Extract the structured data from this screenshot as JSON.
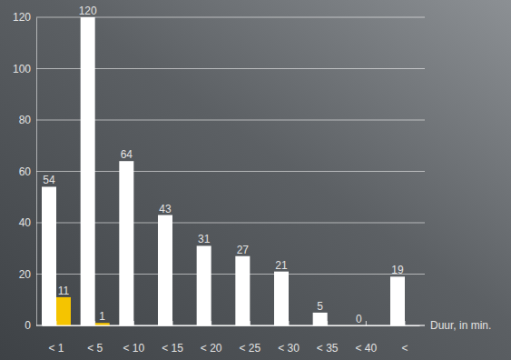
{
  "chart_data": {
    "type": "bar",
    "x_label": "Duur, in min.",
    "categories": [
      "< 1",
      "< 5",
      "< 10",
      "< 15",
      "< 20",
      "< 25",
      "< 30",
      "< 35",
      "< 40",
      "<"
    ],
    "series": [
      {
        "color": "#ffffff",
        "values": [
          54,
          120,
          64,
          43,
          31,
          27,
          21,
          5,
          0,
          19
        ]
      },
      {
        "color": "#f5c400",
        "values": [
          11,
          1,
          null,
          null,
          null,
          null,
          null,
          null,
          null,
          null
        ]
      }
    ],
    "ylim": [
      0,
      120
    ],
    "yticks": [
      0,
      20,
      40,
      60,
      80,
      100,
      120
    ],
    "grid": true,
    "data_labels": true
  }
}
